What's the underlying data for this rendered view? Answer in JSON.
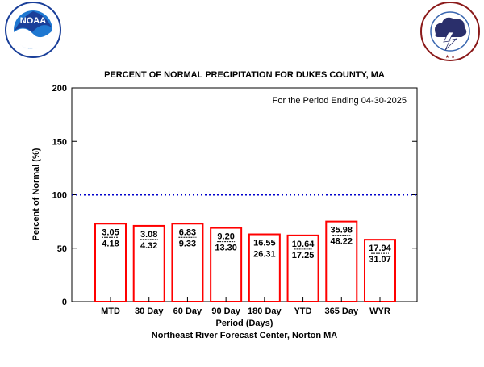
{
  "logos": {
    "left": {
      "icon": "noaa-logo",
      "text": "NOAA",
      "ring_text": "NATIONAL OCEANIC AND ATMOSPHERIC ADMINISTRATION · U.S. DEPARTMENT OF COMMERCE",
      "colors": {
        "outer": "#1a3f99",
        "inner": "#1f78d1",
        "wave": "#ffffff"
      }
    },
    "right": {
      "icon": "nws-logo",
      "ring_text": "NATIONAL WEATHER SERVICE",
      "colors": {
        "ring": "#8b1a1a",
        "sky": "#3a67b0",
        "cloud": "#2a2f6b",
        "bolt": "#ffffff"
      }
    }
  },
  "chart_data": {
    "type": "bar",
    "title": "PERCENT OF NORMAL PRECIPITATION FOR DUKES COUNTY, MA",
    "annotation": "For the Period Ending 04-30-2025",
    "xlabel": "Period (Days)",
    "ylabel": "Percent of Normal (%)",
    "footer": "Northeast River Forecast Center, Norton MA",
    "ylim": [
      0,
      200
    ],
    "yticks": [
      "0",
      "50",
      "100",
      "150",
      "200"
    ],
    "reference_line": {
      "value": 100,
      "style": "dotted",
      "color": "#0000cc"
    },
    "bar_color": "#ff0000",
    "categories": [
      "MTD",
      "30 Day",
      "60 Day",
      "90 Day",
      "180 Day",
      "YTD",
      "365 Day",
      "WYR"
    ],
    "values": [
      73,
      71,
      73,
      69,
      63,
      62,
      75,
      58
    ],
    "observed": [
      "3.05",
      "3.08",
      "6.83",
      "9.20",
      "16.55",
      "10.64",
      "35.98",
      "17.94"
    ],
    "normal": [
      "4.18",
      "4.32",
      "9.33",
      "13.30",
      "26.31",
      "17.25",
      "48.22",
      "31.07"
    ]
  }
}
